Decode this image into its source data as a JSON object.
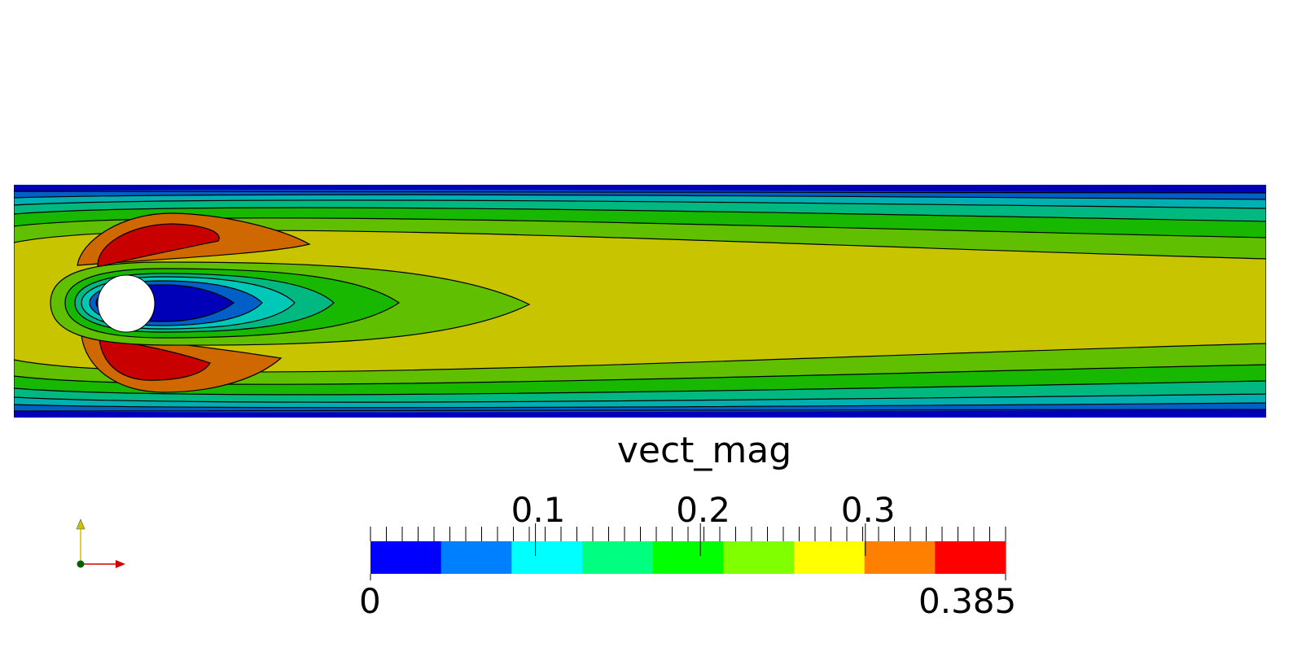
{
  "field": {
    "variable": "vect_mag",
    "range": [
      0,
      0.385
    ],
    "levels": [
      0,
      0.0428,
      0.0856,
      0.1283,
      0.1711,
      0.2139,
      0.2567,
      0.2994,
      0.3422,
      0.385
    ]
  },
  "colorbar": {
    "title": "vect_mag",
    "min_label": "0",
    "max_label": "0.385",
    "tick_labels": [
      "0.1",
      "0.2",
      "0.3"
    ],
    "tick_values": [
      0.1,
      0.2,
      0.3
    ],
    "colors": [
      "#0000ff",
      "#0080ff",
      "#00ffff",
      "#00ff80",
      "#00ff00",
      "#80ff00",
      "#ffff00",
      "#ff8000",
      "#ff0000"
    ]
  },
  "plot_colors": {
    "dark_blue": "#0000b8",
    "blue": "#0060c8",
    "teal": "#00b0b0",
    "cyan": "#00c8b8",
    "sea_green": "#00b878",
    "green": "#18b800",
    "yellow_green": "#60c000",
    "olive_yellow": "#c8c400",
    "orange": "#d06800",
    "red": "#c80000",
    "obstacle": "#ffffff"
  },
  "axes_triad": {
    "x_axis_color": "#d00000",
    "y_axis_color": "#d0c000",
    "origin_color": "#006000"
  }
}
